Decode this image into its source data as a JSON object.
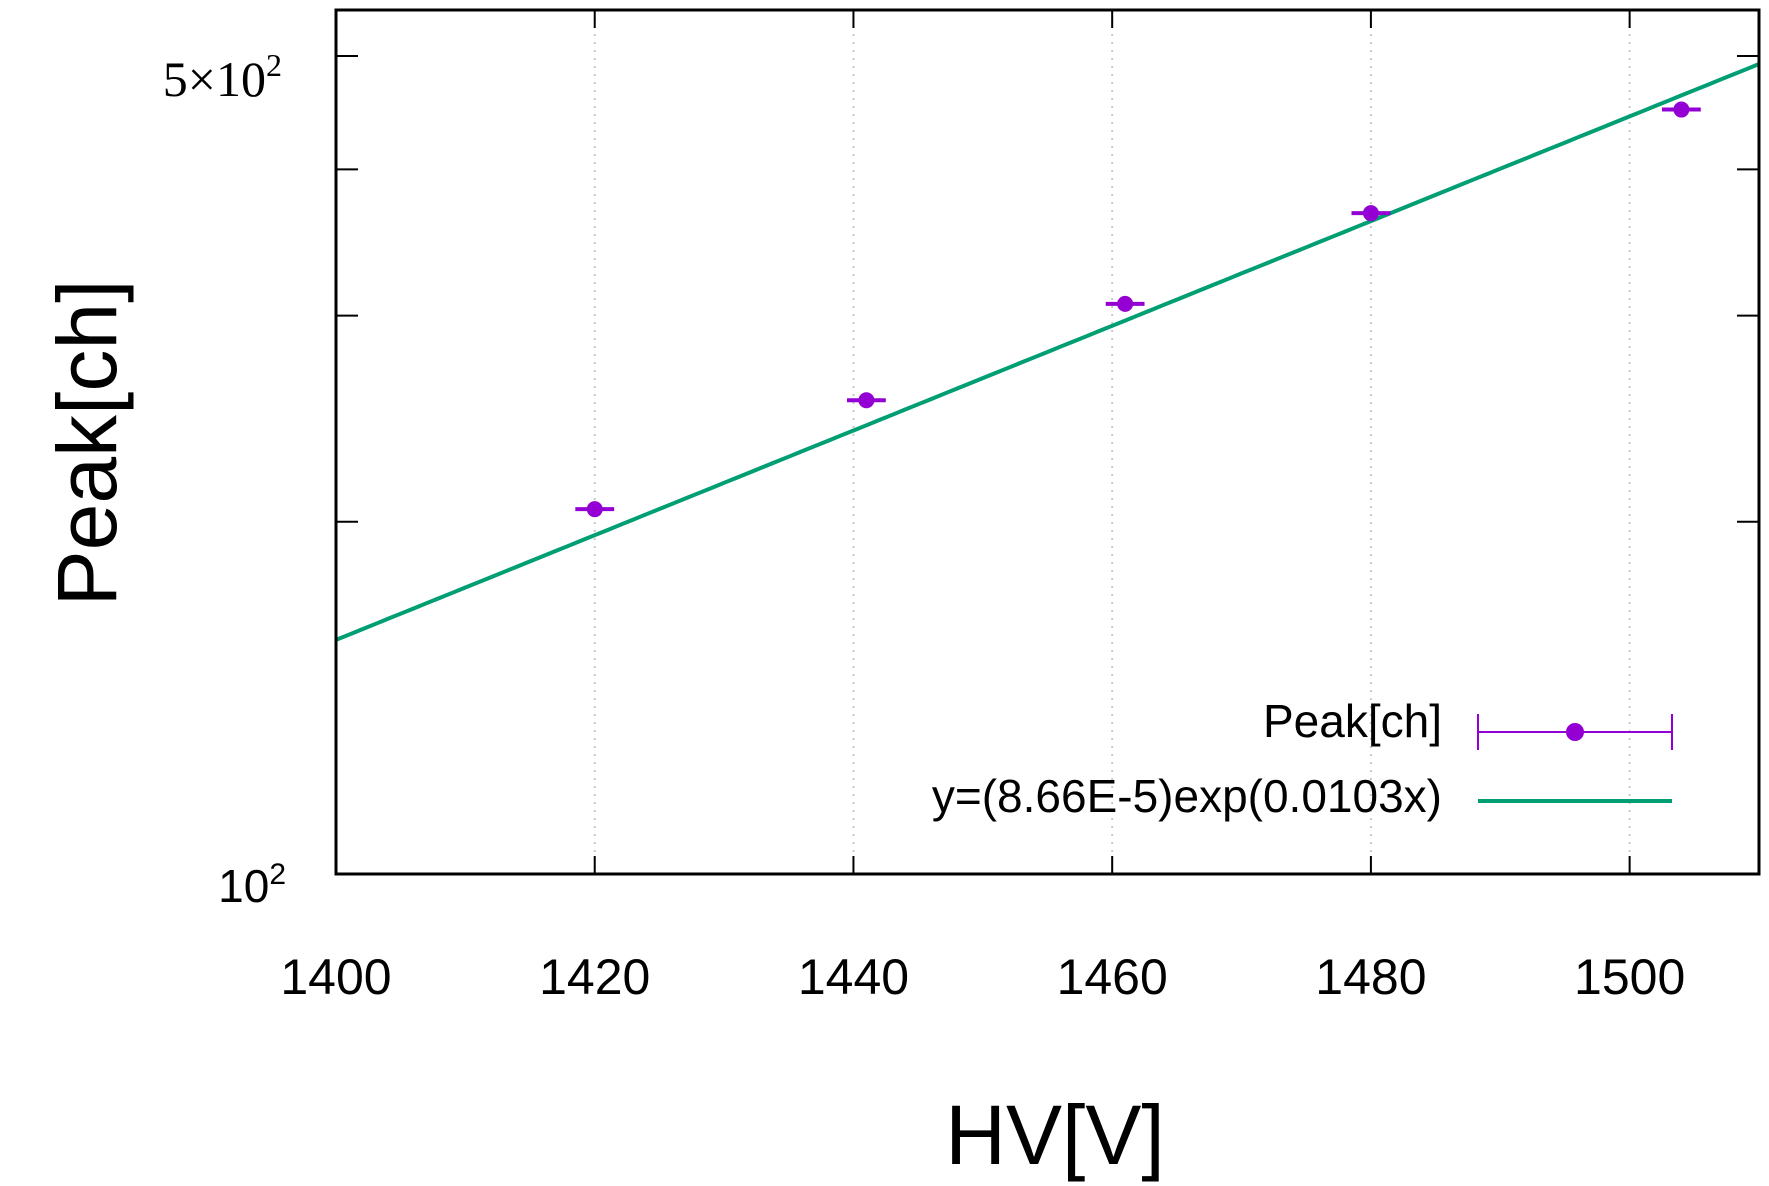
{
  "chart_data": {
    "type": "scatter",
    "xlabel": "HV[V]",
    "ylabel": "Peak[ch]",
    "x_ticks": [
      "1400",
      "1420",
      "1440",
      "1460",
      "1480",
      "1500"
    ],
    "y_tick_labels": {
      "low": "10",
      "low_exp": "2",
      "high_mantissa": "5×10",
      "high_exp": "2"
    },
    "xlim": [
      1400,
      1510
    ],
    "ylim": [
      100,
      500
    ],
    "y_scale": "log",
    "y_minor_ticks": [
      200,
      300,
      400
    ],
    "grid": "vertical dotted at x ticks",
    "legend_position": "bottom-right",
    "series": [
      {
        "name": "Peak[ch]",
        "style": "points with horizontal error bars",
        "color": "#9400d3",
        "x": [
          1420,
          1441,
          1461,
          1480,
          1504
        ],
        "y": [
          205,
          254,
          307,
          367,
          450
        ],
        "x_err": 1.5
      },
      {
        "name": "y=(8.66E-5)exp(0.0103x)",
        "style": "line",
        "color": "#009e73",
        "fit": {
          "a": 8.66e-05,
          "b": 0.0103
        }
      }
    ]
  }
}
